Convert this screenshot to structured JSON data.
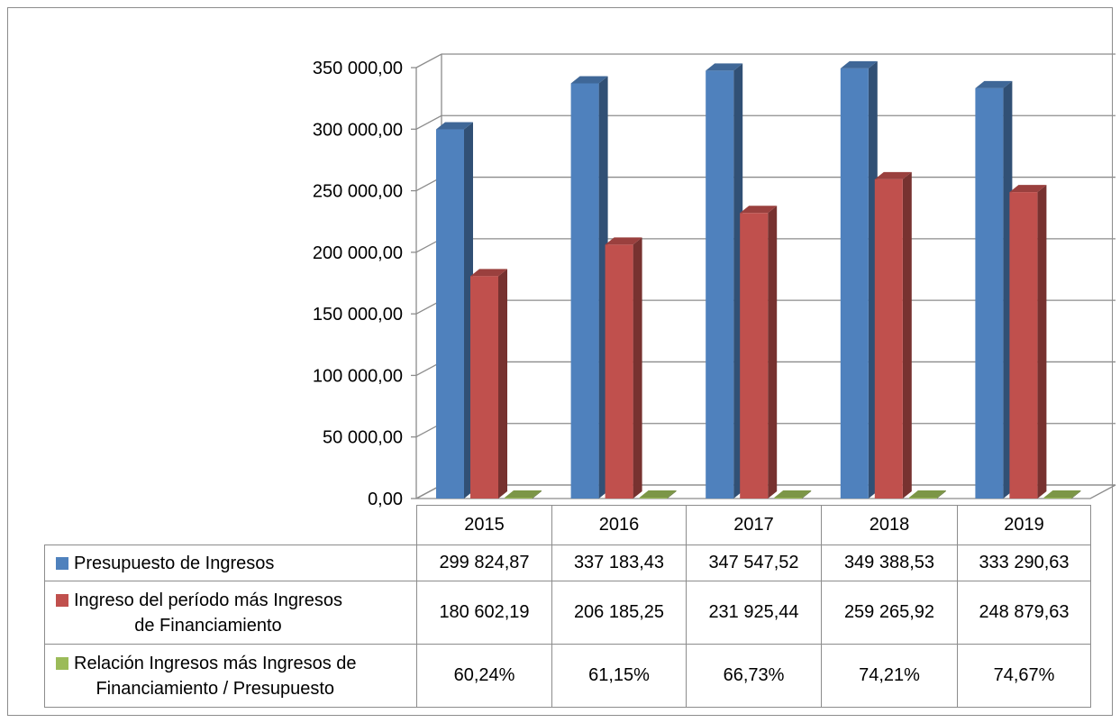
{
  "chart_data": {
    "type": "bar",
    "categories": [
      "2015",
      "2016",
      "2017",
      "2018",
      "2019"
    ],
    "y_ticks": [
      "0,00",
      "50 000,00",
      "100 000,00",
      "150 000,00",
      "200 000,00",
      "250 000,00",
      "300 000,00",
      "350 000,00"
    ],
    "ylim": [
      0,
      350000
    ],
    "grid": true,
    "legend_placement": "table-below",
    "series": [
      {
        "name": "Presupuesto de Ingresos",
        "color": "#4f81bd",
        "values": [
          299824.87,
          337183.43,
          347547.52,
          349388.53,
          333290.63
        ],
        "labels": [
          "299 824,87",
          "337 183,43",
          "347 547,52",
          "349 388,53",
          "333 290,63"
        ]
      },
      {
        "name": "Ingreso del período más Ingresos de Financiamiento",
        "name_lines": [
          "Ingreso del período más Ingresos",
          "de Financiamiento"
        ],
        "color": "#c0504d",
        "values": [
          180602.19,
          206185.25,
          231925.44,
          259265.92,
          248879.63
        ],
        "labels": [
          "180 602,19",
          "206 185,25",
          "231 925,44",
          "259 265,92",
          "248 879,63"
        ]
      },
      {
        "name": "Relación Ingresos más Ingresos de Financiamiento / Presupuesto",
        "name_lines": [
          "Relación Ingresos más Ingresos de",
          "Financiamiento / Presupuesto"
        ],
        "color": "#9bbb59",
        "values": [
          0.6024,
          0.6115,
          0.6673,
          0.7421,
          0.7467
        ],
        "labels": [
          "60,24%",
          "61,15%",
          "66,73%",
          "74,21%",
          "74,67%"
        ]
      }
    ]
  }
}
